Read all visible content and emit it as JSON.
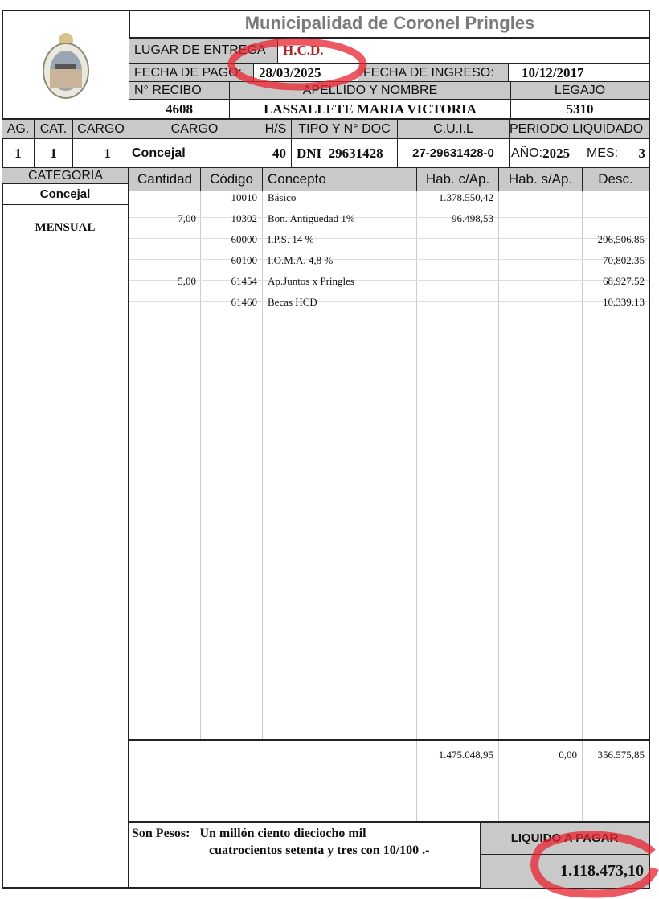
{
  "header": {
    "title": "Municipalidad de Coronel Pringles",
    "lugar_label": "LUGAR DE ENTREGA",
    "lugar_value": "H.C.D.",
    "fecha_pago_label": "FECHA DE PAGO:",
    "fecha_pago_value": "28/03/2025",
    "fecha_ingreso_label": "FECHA DE INGRESO:",
    "fecha_ingreso_value": "10/12/2017",
    "recibo_label": "N° RECIBO",
    "recibo_value": "4608",
    "nombre_label": "APELLIDO Y NOMBRE",
    "nombre_value": "LASSALLETE MARIA VICTORIA",
    "legajo_label": "LEGAJO",
    "legajo_value": "5310"
  },
  "info": {
    "headers": [
      "AG.",
      "CAT.",
      "CARGO",
      "CARGO",
      "H/S",
      "TIPO Y N° DOC",
      "C.U.I.L",
      "PERIODO LIQUIDADO"
    ],
    "ag": "1",
    "cat": "1",
    "cargo_num": "1",
    "cargo": "Concejal",
    "hs": "40",
    "doc": "DNI  29631428",
    "cuil": "27-29631428-0",
    "anio_label": "AÑO:",
    "anio": "2025",
    "mes_label": "MES:",
    "mes": "3"
  },
  "categoria": {
    "label": "CATEGORIA",
    "value": "Concejal",
    "tipo": "MENSUAL"
  },
  "table": {
    "columns": [
      "Cantidad",
      "Código",
      "Concepto",
      "Hab. c/Ap.",
      "Hab. s/Ap.",
      "Desc."
    ],
    "rows": [
      {
        "cantidad": "",
        "codigo": "10010",
        "concepto": "Básico",
        "hab_cap": "1.378.550,42",
        "hab_sap": "",
        "desc": ""
      },
      {
        "cantidad": "7,00",
        "codigo": "10302",
        "concepto": "Bon. Antigüedad 1%",
        "hab_cap": "96.498,53",
        "hab_sap": "",
        "desc": ""
      },
      {
        "cantidad": "",
        "codigo": "60000",
        "concepto": "I.P.S. 14 %",
        "hab_cap": "",
        "hab_sap": "",
        "desc": "206,506.85"
      },
      {
        "cantidad": "",
        "codigo": "60100",
        "concepto": "I.O.M.A.  4,8 %",
        "hab_cap": "",
        "hab_sap": "",
        "desc": "70,802.35"
      },
      {
        "cantidad": "5,00",
        "codigo": "61454",
        "concepto": "Ap.Juntos x Pringles",
        "hab_cap": "",
        "hab_sap": "",
        "desc": "68,927.52"
      },
      {
        "cantidad": "",
        "codigo": "61460",
        "concepto": "Becas HCD",
        "hab_cap": "",
        "hab_sap": "",
        "desc": "10,339.13"
      }
    ],
    "totals": {
      "hab_cap": "1.475.048,95",
      "hab_sap": "0,00",
      "desc": "356.575,85"
    }
  },
  "footer": {
    "son_pesos_label": "Son Pesos:",
    "son_pesos_line1": "Un millón ciento dieciocho mil",
    "son_pesos_line2": "cuatrocientos setenta y tres con 10/100 .-",
    "liquido_label": "LIQUIDO A PAGAR",
    "liquido_value": "1.118.473,10"
  },
  "colors": {
    "header_gray": "#c9c9c9",
    "highlight_red": "#e8232f",
    "title_gray": "#7a7a7a"
  }
}
